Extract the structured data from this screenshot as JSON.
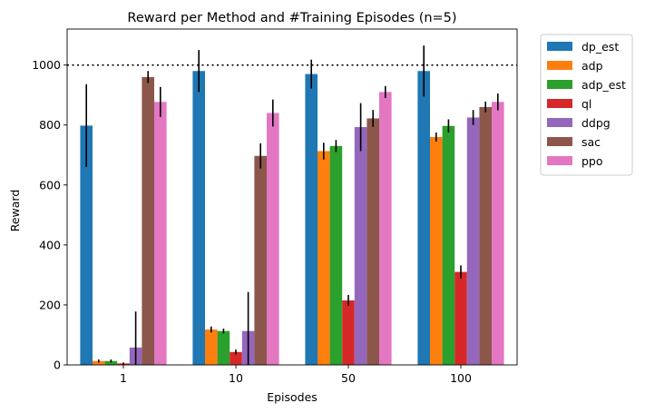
{
  "chart_data": {
    "type": "bar",
    "title": "Reward per Method and #Training Episodes (n=5)",
    "xlabel": "Episodes",
    "ylabel": "Reward",
    "categories": [
      "1",
      "10",
      "50",
      "100"
    ],
    "ylim": [
      0,
      1120
    ],
    "yticks": [
      0,
      200,
      400,
      600,
      800,
      1000
    ],
    "reference_line": 1000,
    "grid": false,
    "legend_position": "outside-right",
    "series": [
      {
        "name": "dp_est",
        "color": "#1f77b4",
        "values": [
          798,
          980,
          970,
          980
        ],
        "errors": [
          138,
          70,
          48,
          85
        ]
      },
      {
        "name": "adp",
        "color": "#ff7f0e",
        "values": [
          13,
          118,
          713,
          760
        ],
        "errors": [
          5,
          10,
          28,
          15
        ]
      },
      {
        "name": "adp_est",
        "color": "#2ca02c",
        "values": [
          13,
          113,
          730,
          797
        ],
        "errors": [
          5,
          8,
          20,
          22
        ]
      },
      {
        "name": "ql",
        "color": "#d62728",
        "values": [
          5,
          43,
          215,
          310
        ],
        "errors": [
          3,
          8,
          18,
          22
        ]
      },
      {
        "name": "ddpg",
        "color": "#9467bd",
        "values": [
          58,
          113,
          793,
          825
        ],
        "errors": [
          120,
          130,
          80,
          25
        ]
      },
      {
        "name": "sac",
        "color": "#8c564b",
        "values": [
          960,
          697,
          822,
          860
        ],
        "errors": [
          20,
          42,
          28,
          18
        ]
      },
      {
        "name": "ppo",
        "color": "#e377c2",
        "values": [
          877,
          840,
          910,
          877
        ],
        "errors": [
          50,
          45,
          20,
          28
        ]
      }
    ]
  }
}
